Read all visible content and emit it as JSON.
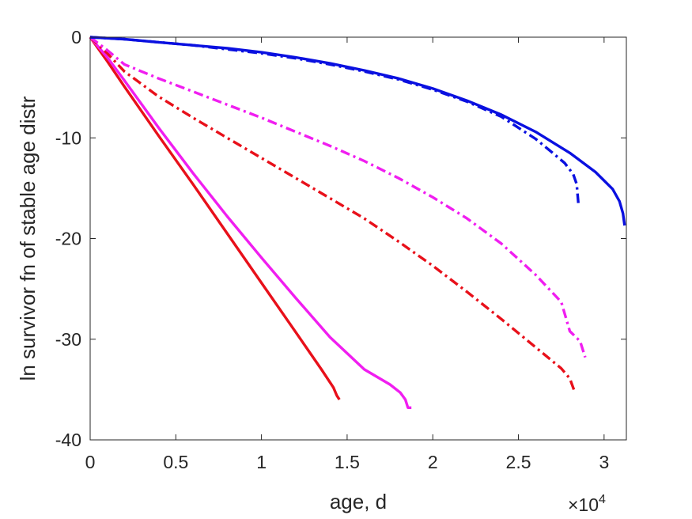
{
  "chart_data": {
    "type": "line",
    "title": "",
    "xlabel": "age, d",
    "ylabel": "ln survivor fn of stable age distr",
    "x_multiplier_label": {
      "base": "×10",
      "exponent": "4"
    },
    "xlim": [
      0,
      31300
    ],
    "ylim": [
      -40,
      0
    ],
    "xticks": [
      0,
      5000,
      10000,
      15000,
      20000,
      25000,
      30000
    ],
    "xtick_labels": [
      "0",
      "0.5",
      "1",
      "1.5",
      "2",
      "2.5",
      "3"
    ],
    "yticks": [
      0,
      -10,
      -20,
      -30,
      -40
    ],
    "ytick_labels": [
      "0",
      "-10",
      "-20",
      "-30",
      "-40"
    ],
    "grid": false,
    "legend": "none",
    "series": [
      {
        "color": "#e8101a",
        "style": "solid",
        "x": [
          0,
          500,
          1000,
          2000,
          4000,
          6000,
          8000,
          10000,
          12000,
          13500,
          14200,
          14400,
          14550
        ],
        "y": [
          0,
          -1.2,
          -2.4,
          -4.9,
          -9.8,
          -14.6,
          -19.5,
          -24.4,
          -29.3,
          -33.0,
          -34.8,
          -35.6,
          -36.0
        ]
      },
      {
        "color": "#f01ef0",
        "style": "solid",
        "x": [
          0,
          1000,
          2000,
          4000,
          6000,
          8000,
          10000,
          12000,
          14000,
          16000,
          17500,
          18100,
          18400,
          18550,
          18750
        ],
        "y": [
          0,
          -2.0,
          -4.3,
          -9.0,
          -13.5,
          -17.8,
          -21.9,
          -25.9,
          -29.8,
          -33.0,
          -34.5,
          -35.3,
          -36.0,
          -36.8,
          -36.8
        ]
      },
      {
        "color": "#e8101a",
        "style": "dashdot",
        "x": [
          0,
          1000,
          2000,
          4000,
          6000,
          8000,
          10000,
          12000,
          14000,
          16000,
          18000,
          20000,
          22000,
          24000,
          26000,
          27500,
          28000,
          28300
        ],
        "y": [
          0,
          -1.6,
          -3.4,
          -5.9,
          -8.0,
          -10.0,
          -12.0,
          -14.0,
          -16.0,
          -18.0,
          -20.3,
          -22.7,
          -25.3,
          -28.0,
          -30.8,
          -32.9,
          -33.9,
          -35.3
        ]
      },
      {
        "color": "#f01ef0",
        "style": "dashdot",
        "x": [
          0,
          1000,
          2000,
          4000,
          6000,
          8000,
          10000,
          12000,
          14000,
          16000,
          18000,
          20000,
          22000,
          24000,
          26000,
          27500,
          28000,
          28600,
          28900
        ],
        "y": [
          0,
          -1.3,
          -2.7,
          -4.1,
          -5.4,
          -6.7,
          -8.0,
          -9.4,
          -10.8,
          -12.3,
          -14.0,
          -15.9,
          -18.0,
          -20.5,
          -23.6,
          -26.3,
          -29.2,
          -30.2,
          -31.8
        ]
      },
      {
        "color": "#0a10e0",
        "style": "dashdot",
        "x": [
          0,
          2000,
          4000,
          6000,
          8000,
          10000,
          12000,
          14000,
          16000,
          18000,
          20000,
          22000,
          24000,
          26000,
          27000,
          27700,
          28200,
          28400,
          28500
        ],
        "y": [
          0,
          -0.2,
          -0.5,
          -0.8,
          -1.2,
          -1.6,
          -2.1,
          -2.7,
          -3.4,
          -4.2,
          -5.2,
          -6.4,
          -7.9,
          -10.1,
          -11.5,
          -12.5,
          -13.6,
          -14.6,
          -16.5
        ]
      },
      {
        "color": "#0a10e0",
        "style": "solid",
        "x": [
          0,
          2000,
          4000,
          6000,
          8000,
          10000,
          12000,
          14000,
          16000,
          18000,
          20000,
          22000,
          24000,
          26000,
          28000,
          29500,
          30500,
          30900,
          31100,
          31200
        ],
        "y": [
          0,
          -0.2,
          -0.5,
          -0.8,
          -1.1,
          -1.5,
          -2.0,
          -2.6,
          -3.3,
          -4.1,
          -5.1,
          -6.3,
          -7.7,
          -9.4,
          -11.5,
          -13.4,
          -15.1,
          -16.3,
          -17.5,
          -18.7
        ]
      }
    ]
  }
}
